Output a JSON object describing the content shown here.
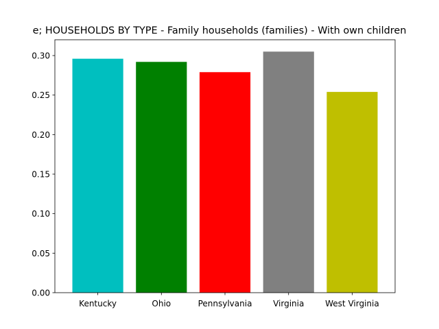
{
  "chart_data": {
    "type": "bar",
    "title": "e; HOUSEHOLDS BY TYPE - Family households (families) - With own children",
    "xlabel": "",
    "ylabel": "",
    "categories": [
      "Kentucky",
      "Ohio",
      "Pennsylvania",
      "Virginia",
      "West Virginia"
    ],
    "values": [
      0.296,
      0.292,
      0.279,
      0.305,
      0.254
    ],
    "colors": [
      "#00bfbf",
      "#008000",
      "#ff0000",
      "#808080",
      "#bfbf00"
    ],
    "ylim": [
      0,
      0.32
    ],
    "yticks": [
      "0.00",
      "0.05",
      "0.10",
      "0.15",
      "0.20",
      "0.25",
      "0.30"
    ],
    "grid": false,
    "legend": "none"
  }
}
